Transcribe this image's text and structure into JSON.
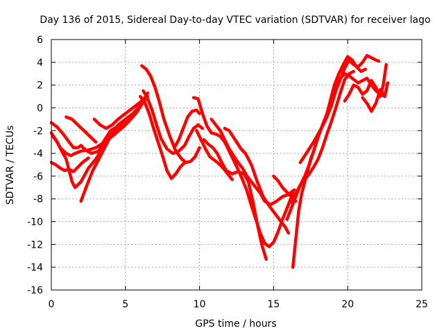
{
  "chart_data": {
    "type": "scatter",
    "title": "Day 136 of 2015, Sidereal Day-to-day VTEC variation (SDTVAR) for receiver lago",
    "xlabel": "GPS time / hours",
    "ylabel": "SDTVAR / TECUs",
    "xlim": [
      0,
      25
    ],
    "ylim": [
      -16,
      6
    ],
    "x_ticks": [
      0,
      5,
      10,
      15,
      20,
      25
    ],
    "y_ticks": [
      -16,
      -14,
      -12,
      -10,
      -8,
      -6,
      -4,
      -2,
      0,
      2,
      4,
      6
    ],
    "grid": true,
    "marker": "+",
    "color": "#ff0000",
    "series": [
      {
        "x": [
          0.0,
          0.3,
          0.6,
          0.9,
          1.2,
          1.5,
          1.8,
          2.1,
          2.5
        ],
        "y": [
          -4.8,
          -5.0,
          -5.3,
          -5.5,
          -5.4,
          -5.6,
          -5.2,
          -4.8,
          -4.4
        ]
      },
      {
        "x": [
          0.0,
          0.3,
          0.6,
          1.0,
          1.3,
          1.6,
          2.0,
          2.5,
          3.0,
          3.6,
          4.3,
          5.0,
          5.7,
          6.2,
          6.5
        ],
        "y": [
          -2.2,
          -2.8,
          -3.5,
          -4.0,
          -4.2,
          -4.0,
          -3.8,
          -3.7,
          -3.5,
          -3.0,
          -2.3,
          -1.5,
          -0.5,
          0.6,
          1.3
        ]
      },
      {
        "x": [
          0.0,
          0.4,
          0.8,
          1.2,
          1.5,
          1.8,
          2.0,
          2.3,
          2.7,
          3.2,
          3.5,
          4.0,
          4.6,
          5.2,
          5.8,
          6.2
        ],
        "y": [
          -1.3,
          -1.7,
          -2.3,
          -3.0,
          -3.5,
          -3.5,
          -3.3,
          -3.7,
          -4.0,
          -3.8,
          -3.0,
          -2.0,
          -1.5,
          -1.0,
          -0.3,
          0.5
        ]
      },
      {
        "x": [
          0.1,
          0.4,
          0.7,
          1.0,
          1.2,
          1.4,
          1.6,
          2.0,
          2.5,
          3.0,
          3.5,
          4.0,
          4.6,
          5.2,
          5.8,
          6.3
        ],
        "y": [
          -2.5,
          -3.0,
          -3.8,
          -4.5,
          -5.5,
          -6.5,
          -7.0,
          -6.5,
          -5.3,
          -4.5,
          -3.5,
          -2.5,
          -1.8,
          -1.0,
          -0.3,
          0.8
        ]
      },
      {
        "x": [
          2.0,
          2.4,
          2.8,
          3.2,
          3.6,
          4.0,
          4.5,
          5.0,
          5.5,
          6.0,
          6.5
        ],
        "y": [
          -8.2,
          -6.8,
          -5.5,
          -4.5,
          -3.5,
          -2.5,
          -1.5,
          -1.0,
          -0.5,
          0.2,
          1.0
        ]
      },
      {
        "x": [
          1.0,
          1.4,
          1.8,
          2.2,
          2.6,
          3.0
        ],
        "y": [
          -0.8,
          -1.0,
          -1.5,
          -2.0,
          -2.5,
          -3.0
        ]
      },
      {
        "x": [
          2.9,
          3.3,
          3.7,
          4.1,
          4.5,
          5.0,
          5.5,
          6.0,
          6.4
        ],
        "y": [
          -1.0,
          -1.5,
          -1.8,
          -1.5,
          -1.0,
          -0.5,
          0.0,
          0.5,
          1.0
        ]
      },
      {
        "x": [
          6.0,
          6.3,
          6.6,
          6.9,
          7.2,
          7.5,
          7.8,
          8.1,
          8.4,
          8.7,
          9.0
        ],
        "y": [
          1.0,
          0.5,
          -0.5,
          -1.8,
          -3.0,
          -4.2,
          -5.5,
          -6.2,
          -5.8,
          -5.2,
          -4.8
        ]
      },
      {
        "x": [
          6.1,
          6.4,
          6.7,
          7.0,
          7.3,
          7.6,
          8.0,
          8.4,
          8.8,
          9.1,
          9.4,
          9.7,
          10.0
        ],
        "y": [
          3.7,
          3.4,
          2.8,
          1.8,
          0.5,
          -1.0,
          -2.5,
          -3.8,
          -4.5,
          -4.8,
          -4.7,
          -4.3,
          -3.5
        ]
      },
      {
        "x": [
          6.2,
          6.5,
          6.8,
          7.1,
          7.4,
          7.8,
          8.2,
          8.6,
          9.0,
          9.3,
          9.6,
          9.9,
          10.2
        ],
        "y": [
          1.5,
          0.8,
          -0.2,
          -1.5,
          -2.7,
          -3.6,
          -4.0,
          -3.8,
          -3.3,
          -2.5,
          -1.8,
          -1.5,
          -1.8
        ]
      },
      {
        "x": [
          8.3,
          8.6,
          8.9,
          9.2,
          9.5,
          9.8,
          10.0
        ],
        "y": [
          -3.5,
          -2.8,
          -1.8,
          -0.8,
          -0.3,
          -0.2,
          -0.5
        ]
      },
      {
        "x": [
          9.6,
          9.9,
          10.2,
          10.5,
          10.8,
          11.1,
          11.4,
          11.7,
          12.0,
          12.3,
          12.6,
          12.9,
          13.2,
          13.5,
          13.8,
          14.1,
          14.4,
          14.7,
          15.0,
          15.3,
          15.6,
          16.0,
          16.3
        ],
        "y": [
          0.9,
          0.8,
          -0.5,
          -1.6,
          -2.2,
          -2.3,
          -2.5,
          -3.0,
          -3.8,
          -4.6,
          -5.4,
          -6.3,
          -7.3,
          -8.6,
          -9.8,
          -11.0,
          -11.9,
          -12.2,
          -11.8,
          -10.9,
          -9.8,
          -8.5,
          -7.5
        ]
      },
      {
        "x": [
          10.3,
          10.6,
          10.9,
          11.2,
          11.5,
          11.8,
          12.2,
          12.6,
          13.0,
          13.3,
          13.6,
          13.9,
          14.2,
          14.5
        ],
        "y": [
          -2.8,
          -3.2,
          -3.5,
          -4.0,
          -4.8,
          -5.5,
          -5.8,
          -5.6,
          -5.8,
          -6.5,
          -8.2,
          -10.2,
          -12.0,
          -13.3
        ]
      },
      {
        "x": [
          9.8,
          10.1,
          10.4,
          10.7,
          11.0,
          11.3,
          11.6,
          11.9,
          12.2
        ],
        "y": [
          -2.0,
          -2.8,
          -3.6,
          -4.3,
          -4.6,
          -4.9,
          -5.3,
          -5.8,
          -6.3
        ]
      },
      {
        "x": [
          10.8,
          11.1,
          11.4,
          11.7,
          12.0,
          12.3,
          12.6,
          12.9,
          13.2,
          13.5,
          13.8,
          14.1,
          14.4,
          14.8,
          15.2,
          15.6,
          16.0,
          16.4
        ],
        "y": [
          -1.0,
          -1.5,
          -2.0,
          -2.8,
          -3.6,
          -4.2,
          -4.8,
          -5.3,
          -6.0,
          -6.5,
          -7.0,
          -7.5,
          -8.2,
          -8.5,
          -8.2,
          -7.8,
          -7.6,
          -7.2
        ]
      },
      {
        "x": [
          11.7,
          12.0,
          12.4,
          12.8,
          13.1,
          13.5,
          13.9,
          14.3,
          14.7,
          15.1,
          15.5,
          15.8,
          16.0
        ],
        "y": [
          -1.8,
          -2.0,
          -2.8,
          -3.6,
          -4.0,
          -5.0,
          -6.5,
          -7.8,
          -8.6,
          -9.3,
          -10.0,
          -10.5,
          -11.0
        ]
      },
      {
        "x": [
          15.0,
          15.3,
          15.6,
          15.9,
          16.2,
          16.5
        ],
        "y": [
          -6.0,
          -6.4,
          -7.0,
          -7.4,
          -7.8,
          -8.2
        ]
      },
      {
        "x": [
          16.3,
          16.5,
          16.7,
          16.9,
          17.1,
          17.3,
          17.5,
          17.7,
          17.9
        ],
        "y": [
          -14.0,
          -11.5,
          -9.0,
          -7.5,
          -6.5,
          -5.5,
          -4.5,
          -3.8,
          -3.0
        ]
      },
      {
        "x": [
          15.9,
          16.2,
          16.5,
          16.8,
          17.1,
          17.4,
          17.7,
          18.0,
          18.3,
          18.6,
          18.9,
          19.2,
          19.5,
          19.8,
          20.1,
          20.4
        ],
        "y": [
          -9.8,
          -8.8,
          -7.8,
          -6.8,
          -6.3,
          -5.8,
          -5.2,
          -4.5,
          -3.5,
          -2.3,
          -1.2,
          0.0,
          1.3,
          2.5,
          3.0,
          3.2
        ]
      },
      {
        "x": [
          16.2,
          16.5,
          16.8,
          17.1,
          17.4,
          17.7,
          18.0,
          18.3,
          18.6,
          18.9,
          19.2,
          19.5,
          19.8,
          20.1,
          20.4,
          20.7,
          21.0,
          21.3,
          21.6,
          21.9,
          22.2,
          22.5
        ],
        "y": [
          -8.3,
          -7.5,
          -6.8,
          -6.0,
          -5.0,
          -3.8,
          -2.6,
          -1.5,
          -0.5,
          0.7,
          1.8,
          2.6,
          3.0,
          2.8,
          2.5,
          2.2,
          2.4,
          2.6,
          2.0,
          1.5,
          1.2,
          1.0
        ]
      },
      {
        "x": [
          16.8,
          17.1,
          17.4,
          17.7,
          18.0,
          18.3,
          18.6,
          18.9,
          19.2,
          19.5,
          19.8,
          20.1,
          20.4,
          20.7,
          21.0,
          21.3,
          21.6,
          21.9,
          22.1
        ],
        "y": [
          -4.8,
          -4.2,
          -3.6,
          -3.0,
          -2.3,
          -1.6,
          -0.8,
          0.2,
          1.5,
          2.5,
          3.5,
          4.2,
          3.8,
          3.6,
          4.0,
          4.6,
          4.4,
          4.2,
          4.1
        ]
      },
      {
        "x": [
          18.5,
          18.8,
          19.1,
          19.4,
          19.7,
          20.0,
          20.3,
          20.6,
          20.9,
          21.2
        ],
        "y": [
          -1.0,
          0.5,
          2.0,
          3.0,
          3.8,
          4.5,
          4.2,
          3.6,
          3.2,
          3.4
        ]
      },
      {
        "x": [
          19.8,
          20.1,
          20.4,
          20.7,
          21.0,
          21.3,
          21.6,
          21.9,
          22.2,
          22.4,
          22.6
        ],
        "y": [
          0.6,
          1.2,
          2.0,
          1.8,
          1.2,
          1.5,
          2.4,
          1.8,
          1.0,
          2.0,
          3.8
        ]
      },
      {
        "x": [
          21.0,
          21.3,
          21.6,
          21.9,
          22.2,
          22.5,
          22.7
        ],
        "y": [
          0.9,
          0.4,
          -0.3,
          0.4,
          1.6,
          1.0,
          2.2
        ]
      }
    ]
  }
}
